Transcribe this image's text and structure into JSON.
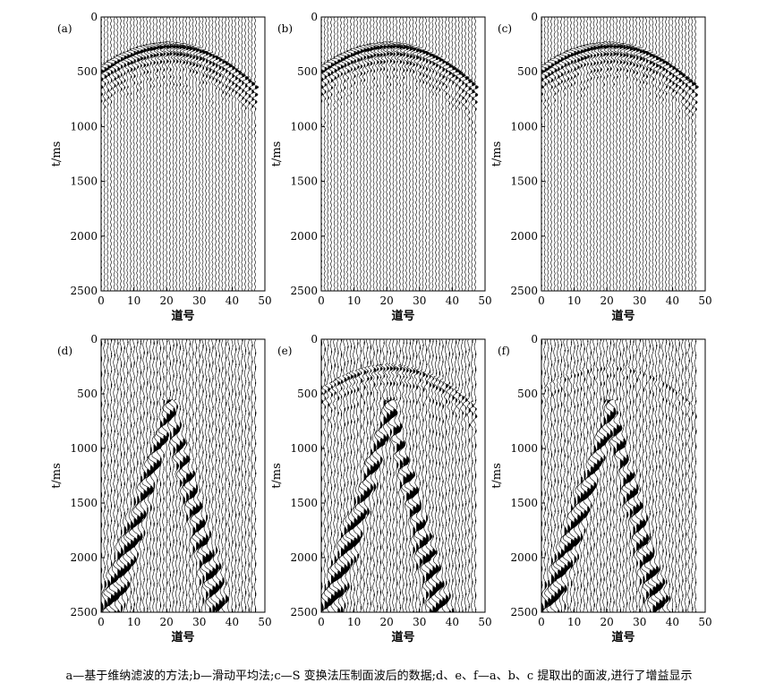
{
  "chart_data": [
    {
      "type": "seismic_wiggle",
      "panel_label": "(a)",
      "xlabel": "道号",
      "ylabel": "t/ms",
      "xlim": [
        0,
        50
      ],
      "ylim": [
        2500,
        0
      ],
      "x_ticks": [
        0,
        10,
        20,
        30,
        40,
        50
      ],
      "y_ticks": [
        0,
        500,
        1000,
        1500,
        2000,
        2500
      ],
      "traces": 48,
      "events": [
        {
          "kind": "hyperbola",
          "apex_trace": 21,
          "apex_time_ms": 250,
          "end_traces": [
            0,
            48
          ],
          "end_times_ms": [
            480,
            650
          ],
          "strength": 1.0
        }
      ]
    },
    {
      "type": "seismic_wiggle",
      "panel_label": "(b)",
      "xlabel": "道号",
      "ylabel": "t/ms",
      "xlim": [
        0,
        50
      ],
      "ylim": [
        2500,
        0
      ],
      "x_ticks": [
        0,
        10,
        20,
        30,
        40,
        50
      ],
      "y_ticks": [
        0,
        500,
        1000,
        1500,
        2000,
        2500
      ],
      "traces": 48,
      "events": [
        {
          "kind": "hyperbola",
          "apex_trace": 21,
          "apex_time_ms": 250,
          "end_traces": [
            0,
            48
          ],
          "end_times_ms": [
            480,
            650
          ],
          "strength": 1.0
        }
      ]
    },
    {
      "type": "seismic_wiggle",
      "panel_label": "(c)",
      "xlabel": "道号",
      "ylabel": "t/ms",
      "xlim": [
        0,
        50
      ],
      "ylim": [
        2500,
        0
      ],
      "x_ticks": [
        0,
        10,
        20,
        30,
        40,
        50
      ],
      "y_ticks": [
        0,
        500,
        1000,
        1500,
        2000,
        2500
      ],
      "traces": 48,
      "events": [
        {
          "kind": "hyperbola",
          "apex_trace": 21,
          "apex_time_ms": 250,
          "end_traces": [
            0,
            48
          ],
          "end_times_ms": [
            480,
            650
          ],
          "strength": 1.0
        }
      ]
    },
    {
      "type": "seismic_wiggle",
      "panel_label": "(d)",
      "xlabel": "道号",
      "ylabel": "t/ms",
      "xlim": [
        0,
        50
      ],
      "ylim": [
        2500,
        0
      ],
      "x_ticks": [
        0,
        10,
        20,
        30,
        40,
        50
      ],
      "y_ticks": [
        0,
        500,
        1000,
        1500,
        2000,
        2500
      ],
      "traces": 48,
      "events": [
        {
          "kind": "surface_wave_cone",
          "apex_trace": 21,
          "apex_time_ms": 650,
          "end_traces": [
            2,
            36
          ],
          "end_time_ms": 2500,
          "strength": 1.0
        }
      ]
    },
    {
      "type": "seismic_wiggle",
      "panel_label": "(e)",
      "xlabel": "道号",
      "ylabel": "t/ms",
      "xlim": [
        0,
        50
      ],
      "ylim": [
        2500,
        0
      ],
      "x_ticks": [
        0,
        10,
        20,
        30,
        40,
        50
      ],
      "y_ticks": [
        0,
        500,
        1000,
        1500,
        2000,
        2500
      ],
      "traces": 48,
      "events": [
        {
          "kind": "surface_wave_cone",
          "apex_trace": 21,
          "apex_time_ms": 650,
          "end_traces": [
            2,
            36
          ],
          "end_time_ms": 2500,
          "strength": 1.0
        },
        {
          "kind": "hyperbola",
          "apex_trace": 21,
          "apex_time_ms": 250,
          "end_traces": [
            0,
            48
          ],
          "end_times_ms": [
            480,
            650
          ],
          "strength": 0.5
        }
      ]
    },
    {
      "type": "seismic_wiggle",
      "panel_label": "(f)",
      "xlabel": "道号",
      "ylabel": "t/ms",
      "xlim": [
        0,
        50
      ],
      "ylim": [
        2500,
        0
      ],
      "x_ticks": [
        0,
        10,
        20,
        30,
        40,
        50
      ],
      "y_ticks": [
        0,
        500,
        1000,
        1500,
        2000,
        2500
      ],
      "traces": 48,
      "events": [
        {
          "kind": "surface_wave_cone",
          "apex_trace": 21,
          "apex_time_ms": 650,
          "end_traces": [
            2,
            36
          ],
          "end_time_ms": 2500,
          "strength": 1.0
        },
        {
          "kind": "hyperbola",
          "apex_trace": 21,
          "apex_time_ms": 250,
          "end_traces": [
            0,
            48
          ],
          "end_times_ms": [
            480,
            650
          ],
          "strength": 0.2
        }
      ]
    }
  ],
  "caption": "a—基于维纳滤波的方法;b—滑动平均法;c—S 变换法压制面波后的数据;d、e、f—a、b、c 提取出的面波,进行了增益显示"
}
